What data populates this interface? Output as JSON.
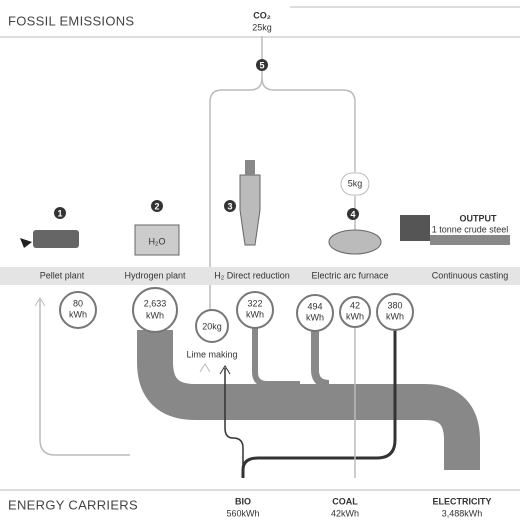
{
  "header": {
    "title": "FOSSIL EMISSIONS"
  },
  "emissions": {
    "label": "CO₂",
    "value": "25kg"
  },
  "step5": "5",
  "side_emission": "5kg",
  "steps": [
    "1",
    "2",
    "3",
    "4"
  ],
  "hydrogen_icon": "H₂O",
  "output": {
    "title": "OUTPUT",
    "subtitle": "1 tonne crude steel"
  },
  "processes": [
    "Pellet plant",
    "Hydrogen plant",
    "H₂ Direct reduction",
    "Electric arc furnace",
    "Continuous casting"
  ],
  "inputs": [
    {
      "value": "80",
      "unit": "kWh"
    },
    {
      "value": "2,633",
      "unit": "kWh"
    },
    {
      "value": "322",
      "unit": "kWh"
    },
    {
      "value": "494",
      "unit": "kWh"
    },
    {
      "value": "42",
      "unit": "kWh"
    },
    {
      "value": "380",
      "unit": "kWh"
    }
  ],
  "lime": {
    "value": "20kg",
    "label": "Lime making"
  },
  "carriers": {
    "title": "ENERGY CARRIERS",
    "items": [
      {
        "name": "BIO",
        "amount": "560kWh"
      },
      {
        "name": "COAL",
        "amount": "42kWh"
      },
      {
        "name": "ELECTRICITY",
        "amount": "3,488kWh"
      }
    ]
  }
}
